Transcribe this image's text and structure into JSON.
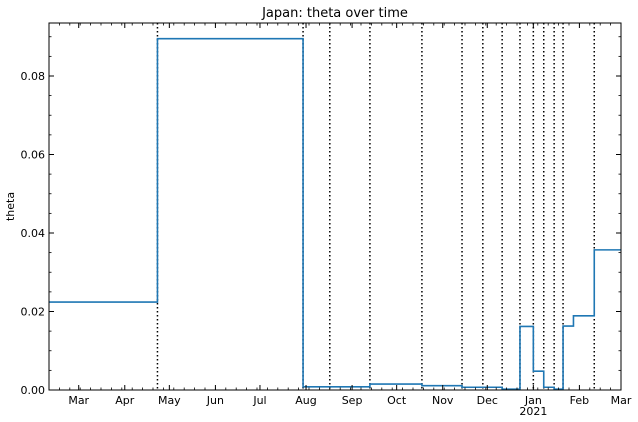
{
  "chart_data": {
    "type": "line",
    "title": "Japan: theta over time",
    "xlabel": "",
    "ylabel": "theta",
    "xlim": [
      "2020-02-10",
      "2021-03-01"
    ],
    "ylim": [
      0,
      0.0935
    ],
    "grid": false,
    "legend": "none",
    "x_tick_labels": [
      {
        "date": "2020-03-01",
        "label": "Mar"
      },
      {
        "date": "2020-04-01",
        "label": "Apr"
      },
      {
        "date": "2020-05-01",
        "label": "May"
      },
      {
        "date": "2020-06-01",
        "label": "Jun"
      },
      {
        "date": "2020-07-01",
        "label": "Jul"
      },
      {
        "date": "2020-08-01",
        "label": "Aug"
      },
      {
        "date": "2020-09-01",
        "label": "Sep"
      },
      {
        "date": "2020-10-01",
        "label": "Oct"
      },
      {
        "date": "2020-11-01",
        "label": "Nov"
      },
      {
        "date": "2020-12-01",
        "label": "Dec"
      },
      {
        "date": "2021-01-01",
        "label": "Jan"
      },
      {
        "date": "2021-02-01",
        "label": "Feb"
      },
      {
        "date": "2021-03-01",
        "label": "Mar"
      }
    ],
    "x_year_label": {
      "date": "2021-01-01",
      "label": "2021"
    },
    "y_ticks": [
      {
        "value": 0.0,
        "label": "0.00"
      },
      {
        "value": 0.02,
        "label": "0.02"
      },
      {
        "value": 0.04,
        "label": "0.04"
      },
      {
        "value": 0.06,
        "label": "0.06"
      },
      {
        "value": 0.08,
        "label": "0.08"
      }
    ],
    "breakpoints": [
      "2020-04-23",
      "2020-07-30",
      "2020-08-17",
      "2020-09-13",
      "2020-10-18",
      "2020-11-14",
      "2020-11-28",
      "2020-12-11",
      "2020-12-23",
      "2021-01-01",
      "2021-01-08",
      "2021-01-15",
      "2021-01-21",
      "2021-02-11"
    ],
    "series": [
      {
        "color": "#1f77b4",
        "segments": [
          {
            "start": "2020-02-10",
            "end": "2020-04-23",
            "value": 0.0224
          },
          {
            "start": "2020-04-23",
            "end": "2020-07-30",
            "value": 0.0895
          },
          {
            "start": "2020-07-30",
            "end": "2020-09-13",
            "value": 0.0008
          },
          {
            "start": "2020-09-13",
            "end": "2020-10-18",
            "value": 0.0015
          },
          {
            "start": "2020-10-18",
            "end": "2020-11-14",
            "value": 0.0011
          },
          {
            "start": "2020-11-14",
            "end": "2020-12-11",
            "value": 0.0007
          },
          {
            "start": "2020-12-11",
            "end": "2020-12-23",
            "value": 0.0002
          },
          {
            "start": "2020-12-23",
            "end": "2021-01-01",
            "value": 0.0162
          },
          {
            "start": "2021-01-01",
            "end": "2021-01-08",
            "value": 0.0048
          },
          {
            "start": "2021-01-08",
            "end": "2021-01-15",
            "value": 0.0007
          },
          {
            "start": "2021-01-15",
            "end": "2021-01-21",
            "value": 0.0002
          },
          {
            "start": "2021-01-21",
            "end": "2021-01-28",
            "value": 0.0163
          },
          {
            "start": "2021-01-28",
            "end": "2021-02-11",
            "value": 0.0189
          },
          {
            "start": "2021-02-11",
            "end": "2021-03-01",
            "value": 0.0357
          }
        ]
      }
    ]
  }
}
